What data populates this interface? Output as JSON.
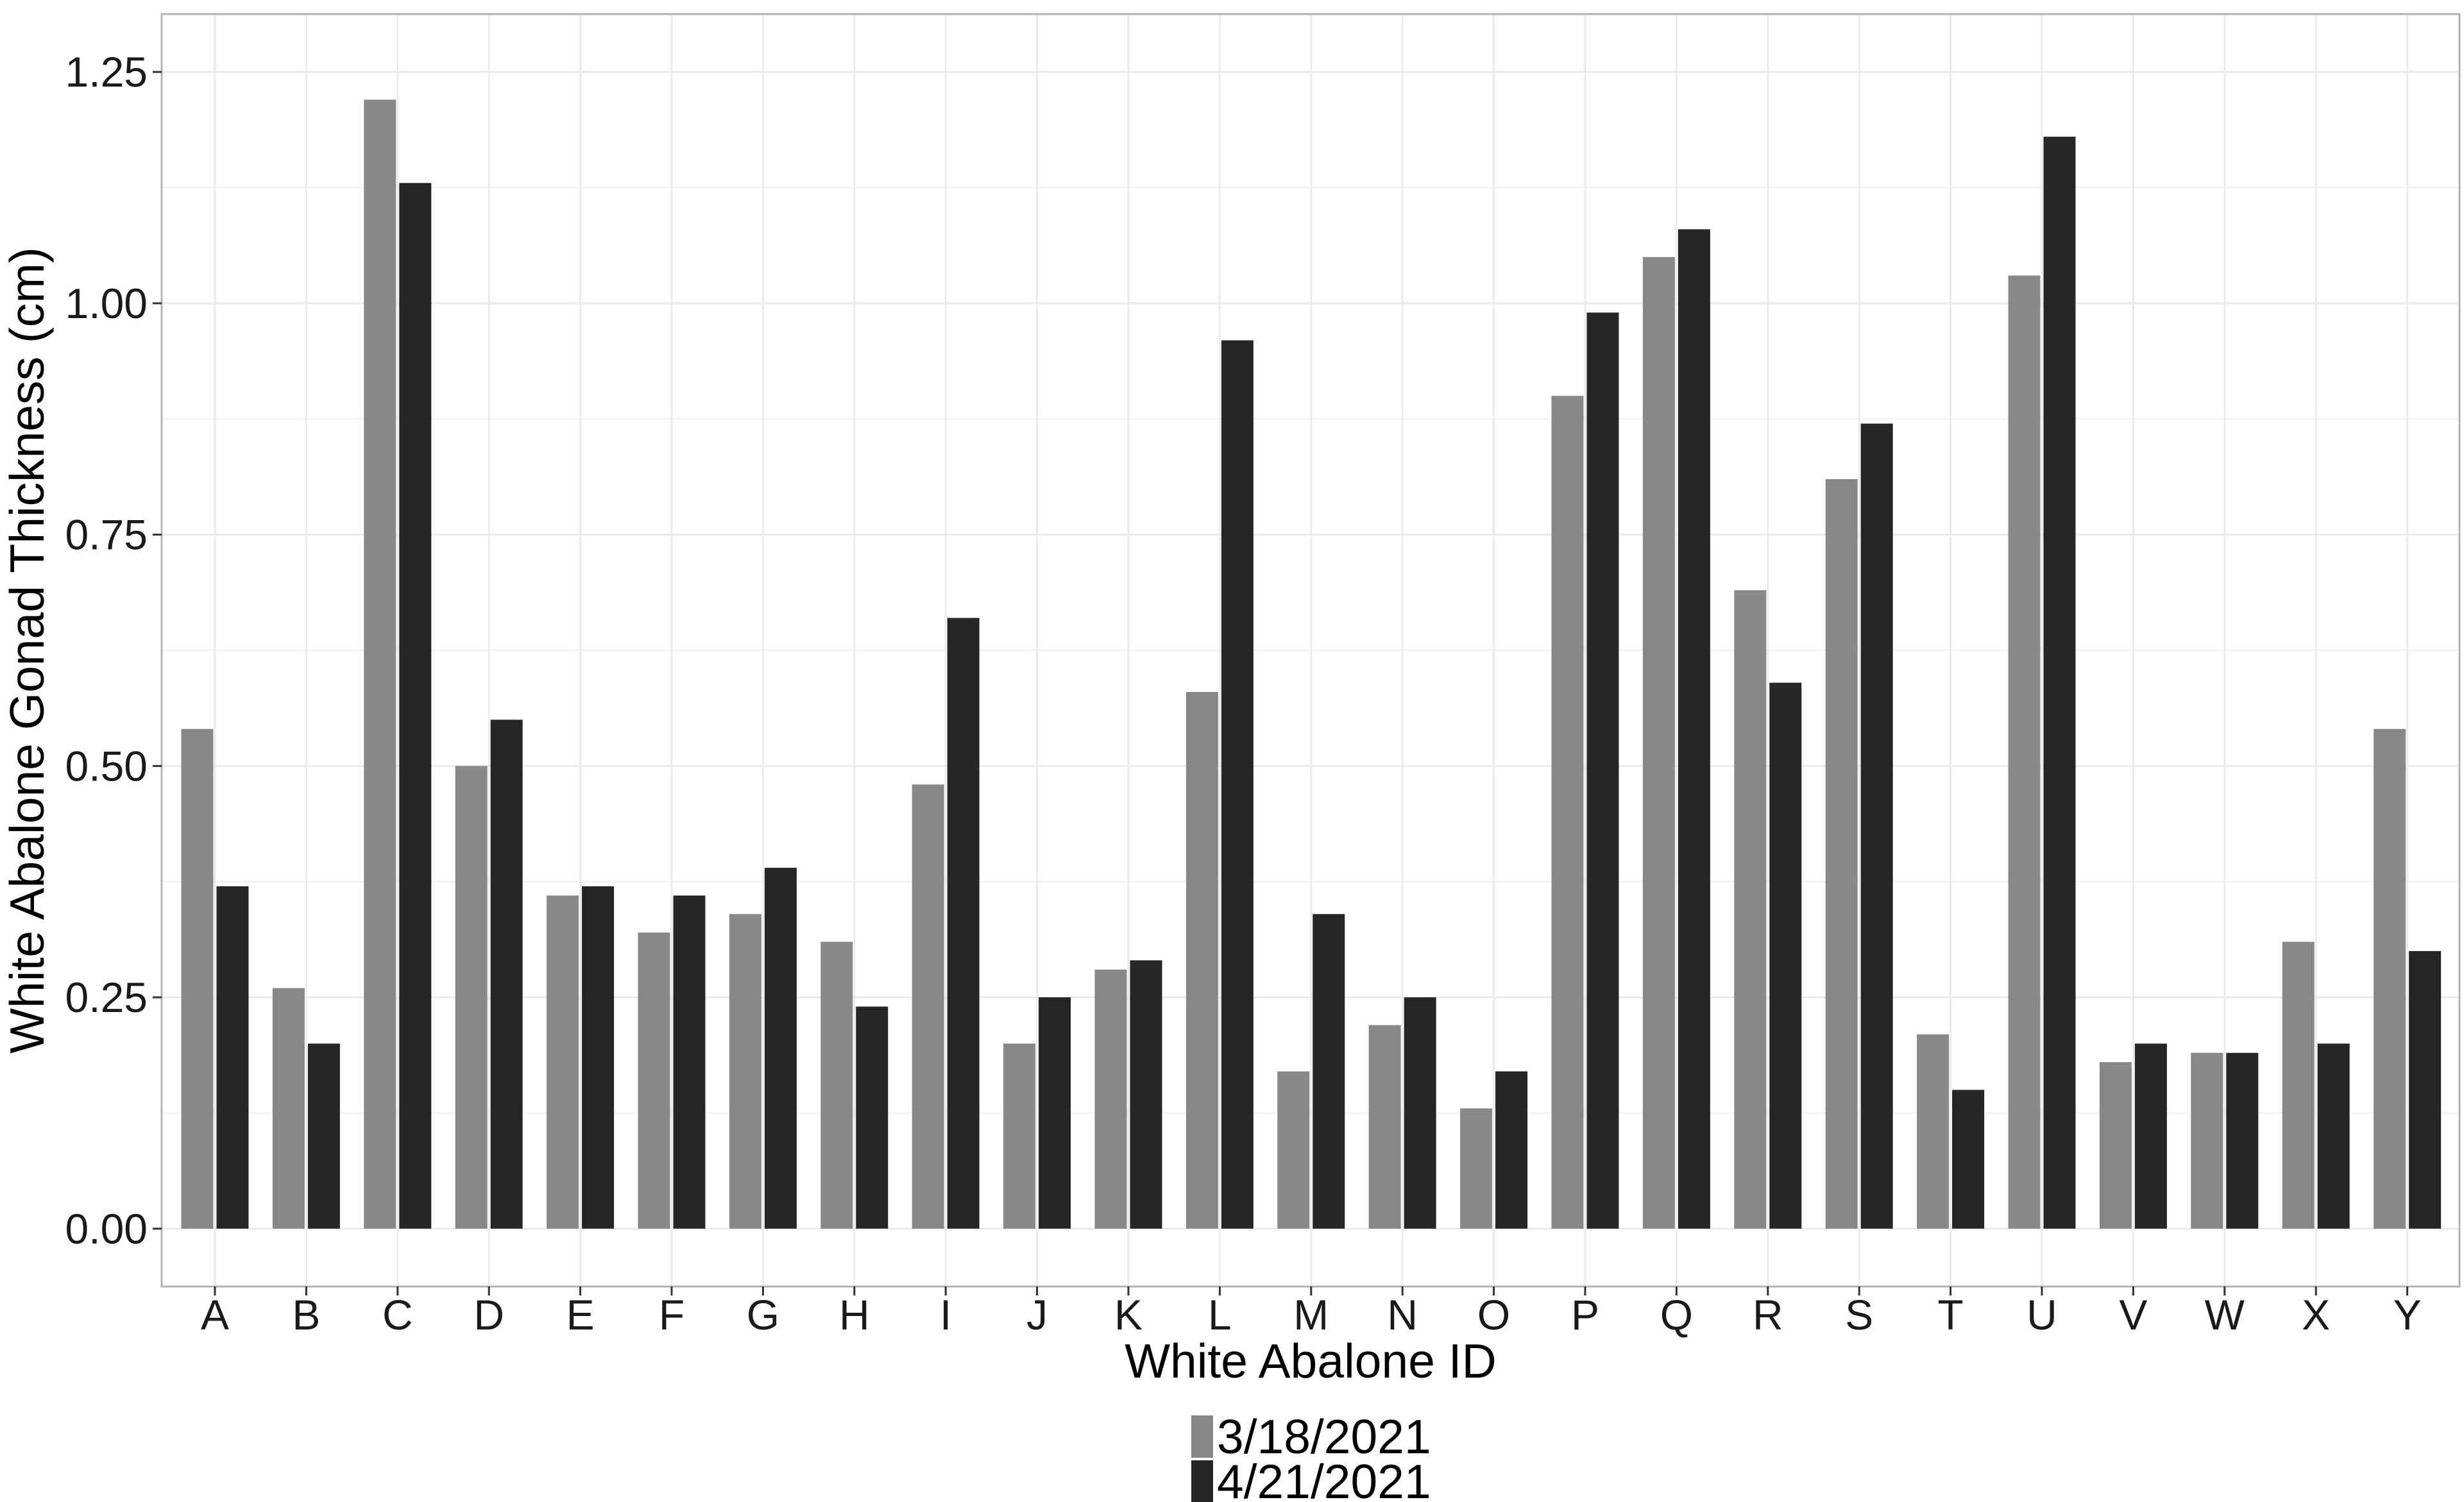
{
  "chart_data": {
    "type": "bar",
    "title": "",
    "xlabel": "White Abalone ID",
    "ylabel": "White Abalone Gonad Thickness (cm)",
    "categories": [
      "A",
      "B",
      "C",
      "D",
      "E",
      "F",
      "G",
      "H",
      "I",
      "J",
      "K",
      "L",
      "M",
      "N",
      "O",
      "P",
      "Q",
      "R",
      "S",
      "T",
      "U",
      "V",
      "W",
      "X",
      "Y"
    ],
    "series": [
      {
        "name": "3/18/2021",
        "color": "#888888",
        "values": [
          0.54,
          0.26,
          1.22,
          0.5,
          0.36,
          0.32,
          0.34,
          0.31,
          0.48,
          0.2,
          0.28,
          0.58,
          0.17,
          0.22,
          0.13,
          0.9,
          1.05,
          0.69,
          0.81,
          0.21,
          1.03,
          0.18,
          0.19,
          0.31,
          0.54
        ]
      },
      {
        "name": "4/21/2021",
        "color": "#262626",
        "values": [
          0.37,
          0.2,
          1.13,
          0.55,
          0.37,
          0.36,
          0.39,
          0.24,
          0.66,
          0.25,
          0.29,
          0.96,
          0.34,
          0.25,
          0.17,
          0.99,
          1.08,
          0.59,
          0.87,
          0.15,
          1.18,
          0.2,
          0.19,
          0.2,
          0.3
        ]
      }
    ],
    "ylim": [
      -0.0625,
      1.3125
    ],
    "yticks": [
      0.0,
      0.25,
      0.5,
      0.75,
      1.0,
      1.25
    ],
    "ytick_labels": [
      "0.00",
      "0.25",
      "0.50",
      "0.75",
      "1.00",
      "1.25"
    ],
    "grid": true,
    "legend_position": "bottom"
  }
}
